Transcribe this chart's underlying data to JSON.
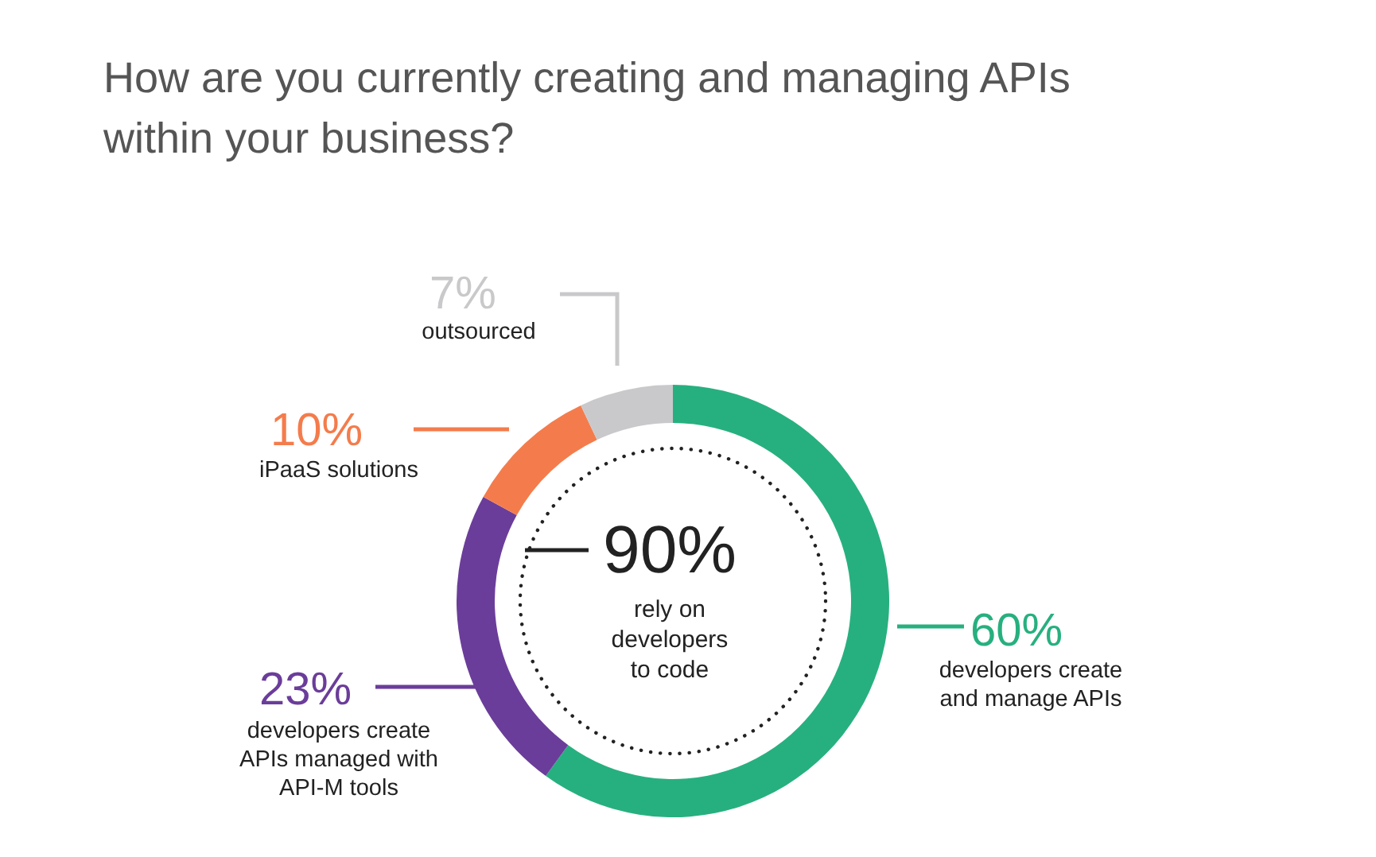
{
  "chart_data": {
    "type": "donut",
    "title": "How are you currently creating and managing APIs within your business?",
    "categories": [
      "developers create and manage APIs",
      "developers create APIs managed with API-M tools",
      "iPaaS solutions",
      "outsourced"
    ],
    "values": [
      60,
      23,
      10,
      7
    ],
    "colors": [
      "#27b07f",
      "#6b3d9a",
      "#f47c4c",
      "#c9c9cb"
    ],
    "value_labels": [
      "60%",
      "23%",
      "10%",
      "7%"
    ],
    "annotations": [
      "90%",
      "rely on developers to code"
    ]
  }
}
